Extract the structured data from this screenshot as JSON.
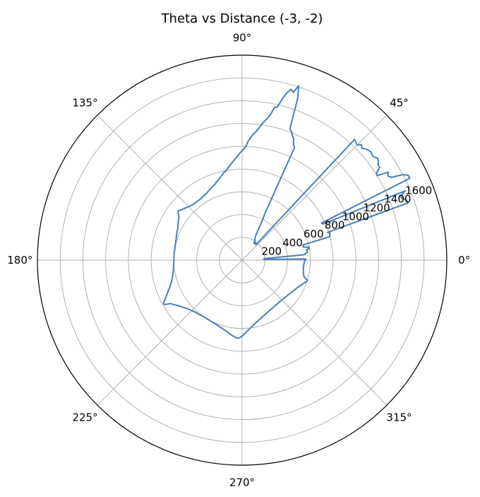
{
  "chart_data": {
    "type": "line",
    "projection": "polar",
    "title": "Theta vs Distance (-3, -2)",
    "theta_unit": "degrees",
    "theta_ticks": [
      {
        "deg": 0,
        "label": "0°"
      },
      {
        "deg": 45,
        "label": "45°"
      },
      {
        "deg": 90,
        "label": "90°"
      },
      {
        "deg": 135,
        "label": "135°"
      },
      {
        "deg": 180,
        "label": "180°"
      },
      {
        "deg": 225,
        "label": "225°"
      },
      {
        "deg": 270,
        "label": "270°"
      },
      {
        "deg": 315,
        "label": "315°"
      }
    ],
    "r_ticks": [
      200,
      400,
      600,
      800,
      1000,
      1200,
      1400,
      1600
    ],
    "r_tick_labels": [
      "200",
      "400",
      "600",
      "800",
      "1000",
      "1200",
      "1400",
      "1600"
    ],
    "r_label_angle_deg": 22.5,
    "rlim": [
      0,
      1800
    ],
    "grid": true,
    "line_color": "#4a7fb5",
    "series": [
      {
        "theta": [
          0,
          1,
          2,
          3,
          4,
          5,
          6,
          7,
          8,
          9,
          10,
          11,
          12,
          13,
          14,
          15,
          16,
          17,
          18,
          19,
          20,
          21,
          22,
          23,
          24,
          25,
          26,
          27,
          28,
          29,
          30,
          31,
          32,
          33,
          34,
          35,
          36,
          37,
          38,
          39,
          40,
          41,
          42,
          43,
          44,
          45,
          46,
          47,
          48,
          49,
          50,
          51,
          52,
          53,
          54,
          55,
          56,
          57,
          58,
          59,
          60,
          61,
          62,
          63,
          64,
          65,
          66,
          67,
          68,
          69,
          70,
          71,
          72,
          73,
          74,
          75,
          76,
          77,
          78,
          79,
          80,
          81,
          82,
          83,
          84,
          85,
          86,
          87,
          88,
          89,
          90,
          91,
          92,
          93,
          94,
          95,
          96,
          97,
          98,
          99,
          100,
          101,
          102,
          103,
          104,
          105,
          106,
          107,
          108,
          109,
          110,
          111,
          112,
          113,
          114,
          115,
          116,
          117,
          118,
          119,
          120,
          121,
          122,
          123,
          124,
          125,
          126,
          127,
          128,
          129,
          130,
          131,
          132,
          133,
          134,
          135,
          136,
          137,
          138,
          139,
          140,
          141,
          142,
          143,
          144,
          145,
          146,
          147,
          148,
          149,
          150,
          151,
          152,
          153,
          154,
          155,
          156,
          157,
          158,
          159,
          160,
          161,
          162,
          163,
          164,
          165,
          166,
          167,
          168,
          169,
          170,
          171,
          172,
          173,
          174,
          175,
          176,
          177,
          178,
          179,
          180,
          181,
          182,
          183,
          184,
          185,
          186,
          187,
          188,
          189,
          190,
          191,
          192,
          193,
          194,
          195,
          196,
          197,
          198,
          199,
          200,
          201,
          202,
          203,
          204,
          205,
          206,
          207,
          208,
          209,
          210,
          211,
          212,
          213,
          214,
          215,
          216,
          217,
          218,
          219,
          220,
          221,
          222,
          223,
          224,
          225,
          226,
          227,
          228,
          229,
          230,
          231,
          232,
          233,
          234,
          235,
          236,
          237,
          238,
          239,
          240,
          241,
          242,
          243,
          244,
          245,
          246,
          247,
          248,
          249,
          250,
          251,
          252,
          253,
          254,
          255,
          256,
          257,
          258,
          259,
          260,
          261,
          262,
          263,
          264,
          265,
          266,
          267,
          268,
          269,
          270,
          271,
          272,
          273,
          274,
          275,
          276,
          277,
          278,
          279,
          280,
          281,
          282,
          283,
          284,
          285,
          286,
          287,
          288,
          289,
          290,
          291,
          292,
          293,
          294,
          295,
          296,
          297,
          298,
          299,
          300,
          301,
          302,
          303,
          304,
          305,
          306,
          307,
          308,
          309,
          310,
          311,
          312,
          313,
          314,
          315,
          316,
          317,
          318,
          319,
          320,
          321,
          322,
          323,
          324,
          325,
          326,
          327,
          328,
          329,
          330,
          331,
          332,
          333,
          334,
          335,
          336,
          337,
          338,
          339,
          340,
          341,
          342,
          343,
          344,
          345,
          346,
          347,
          348,
          349,
          350,
          351,
          352,
          353,
          354,
          355,
          356,
          357,
          358,
          359,
          360
        ],
        "r": [
          560,
          560,
          190,
          190,
          200,
          550,
          560,
          580,
          580,
          570,
          600,
          600,
          550,
          555,
          550,
          800,
          800,
          810,
          790,
          1540,
          1540,
          1510,
          1500,
          1560,
          780,
          770,
          1640,
          1640,
          1600,
          1500,
          1480,
          1500,
          1400,
          1410,
          1460,
          1460,
          1480,
          1490,
          1470,
          1470,
          1480,
          1470,
          1460,
          1440,
          1460,
          1430,
          1440,
          1450,
          190,
          180,
          190,
          195,
          185,
          190,
          195,
          180,
          200,
          210,
          210,
          220,
          230,
          250,
          300,
          390,
          460,
          1090,
          1110,
          1160,
          1180,
          1210,
          1230,
          1500,
          1610,
          1540,
          1560,
          1520,
          1460,
          1380,
          1370,
          1300,
          1260,
          1230,
          1200,
          1160,
          1130,
          1110,
          1080,
          1050,
          1000,
          980,
          960,
          945,
          925,
          905,
          890,
          875,
          860,
          845,
          830,
          815,
          800,
          790,
          785,
          770,
          760,
          750,
          740,
          730,
          725,
          715,
          705,
          700,
          695,
          690,
          685,
          680,
          675,
          670,
          665,
          660,
          660,
          660,
          655,
          652,
          650,
          650,
          650,
          650,
          650,
          650,
          650,
          652,
          655,
          658,
          660,
          665,
          670,
          675,
          680,
          685,
          690,
          700,
          710,
          705,
          695,
          680,
          670,
          665,
          660,
          655,
          650,
          645,
          640,
          635,
          630,
          628,
          625,
          622,
          620,
          618,
          615,
          612,
          610,
          608,
          606,
          605,
          604,
          603,
          602,
          601,
          600,
          600,
          600,
          600,
          600,
          600,
          600,
          600,
          600,
          600,
          600,
          600,
          602,
          603,
          604,
          605,
          607,
          609,
          611,
          613,
          616,
          620,
          624,
          628,
          632,
          637,
          643,
          650,
          658,
          666,
          675,
          685,
          696,
          708,
          720,
          734,
          748,
          760,
          780,
          790,
          780,
          740,
          728,
          715,
          704,
          694,
          684,
          675,
          667,
          659,
          652,
          646,
          640,
          635,
          630,
          626,
          622,
          618,
          615,
          613,
          611,
          609,
          607,
          605,
          604,
          602,
          601,
          600,
          600,
          600,
          600,
          600,
          601,
          602,
          603,
          604,
          605,
          607,
          609,
          611,
          613,
          616,
          619,
          622,
          625,
          629,
          633,
          637,
          642,
          647,
          652,
          658,
          664,
          670,
          675,
          680,
          684,
          686,
          682,
          675,
          666,
          656,
          646,
          636,
          626,
          617,
          608,
          600,
          592,
          585,
          578,
          571,
          565,
          559,
          554,
          549,
          544,
          540,
          536,
          532,
          528,
          524,
          521,
          518,
          515,
          512,
          509,
          507,
          505,
          503,
          501,
          500,
          498,
          497,
          496,
          495,
          494,
          494,
          493,
          493,
          493,
          493,
          493,
          494,
          494,
          495,
          496,
          497,
          498,
          500,
          501,
          503,
          505,
          507,
          509,
          512,
          515,
          518,
          521,
          524,
          528,
          532,
          536,
          540,
          545,
          550,
          556,
          562,
          568,
          575,
          583,
          591,
          600,
          600,
          580,
          565,
          560,
          555,
          550,
          548,
          546,
          545,
          544,
          543,
          543,
          543,
          544,
          545,
          547,
          549,
          552,
          555,
          558,
          560
        ]
      }
    ]
  }
}
